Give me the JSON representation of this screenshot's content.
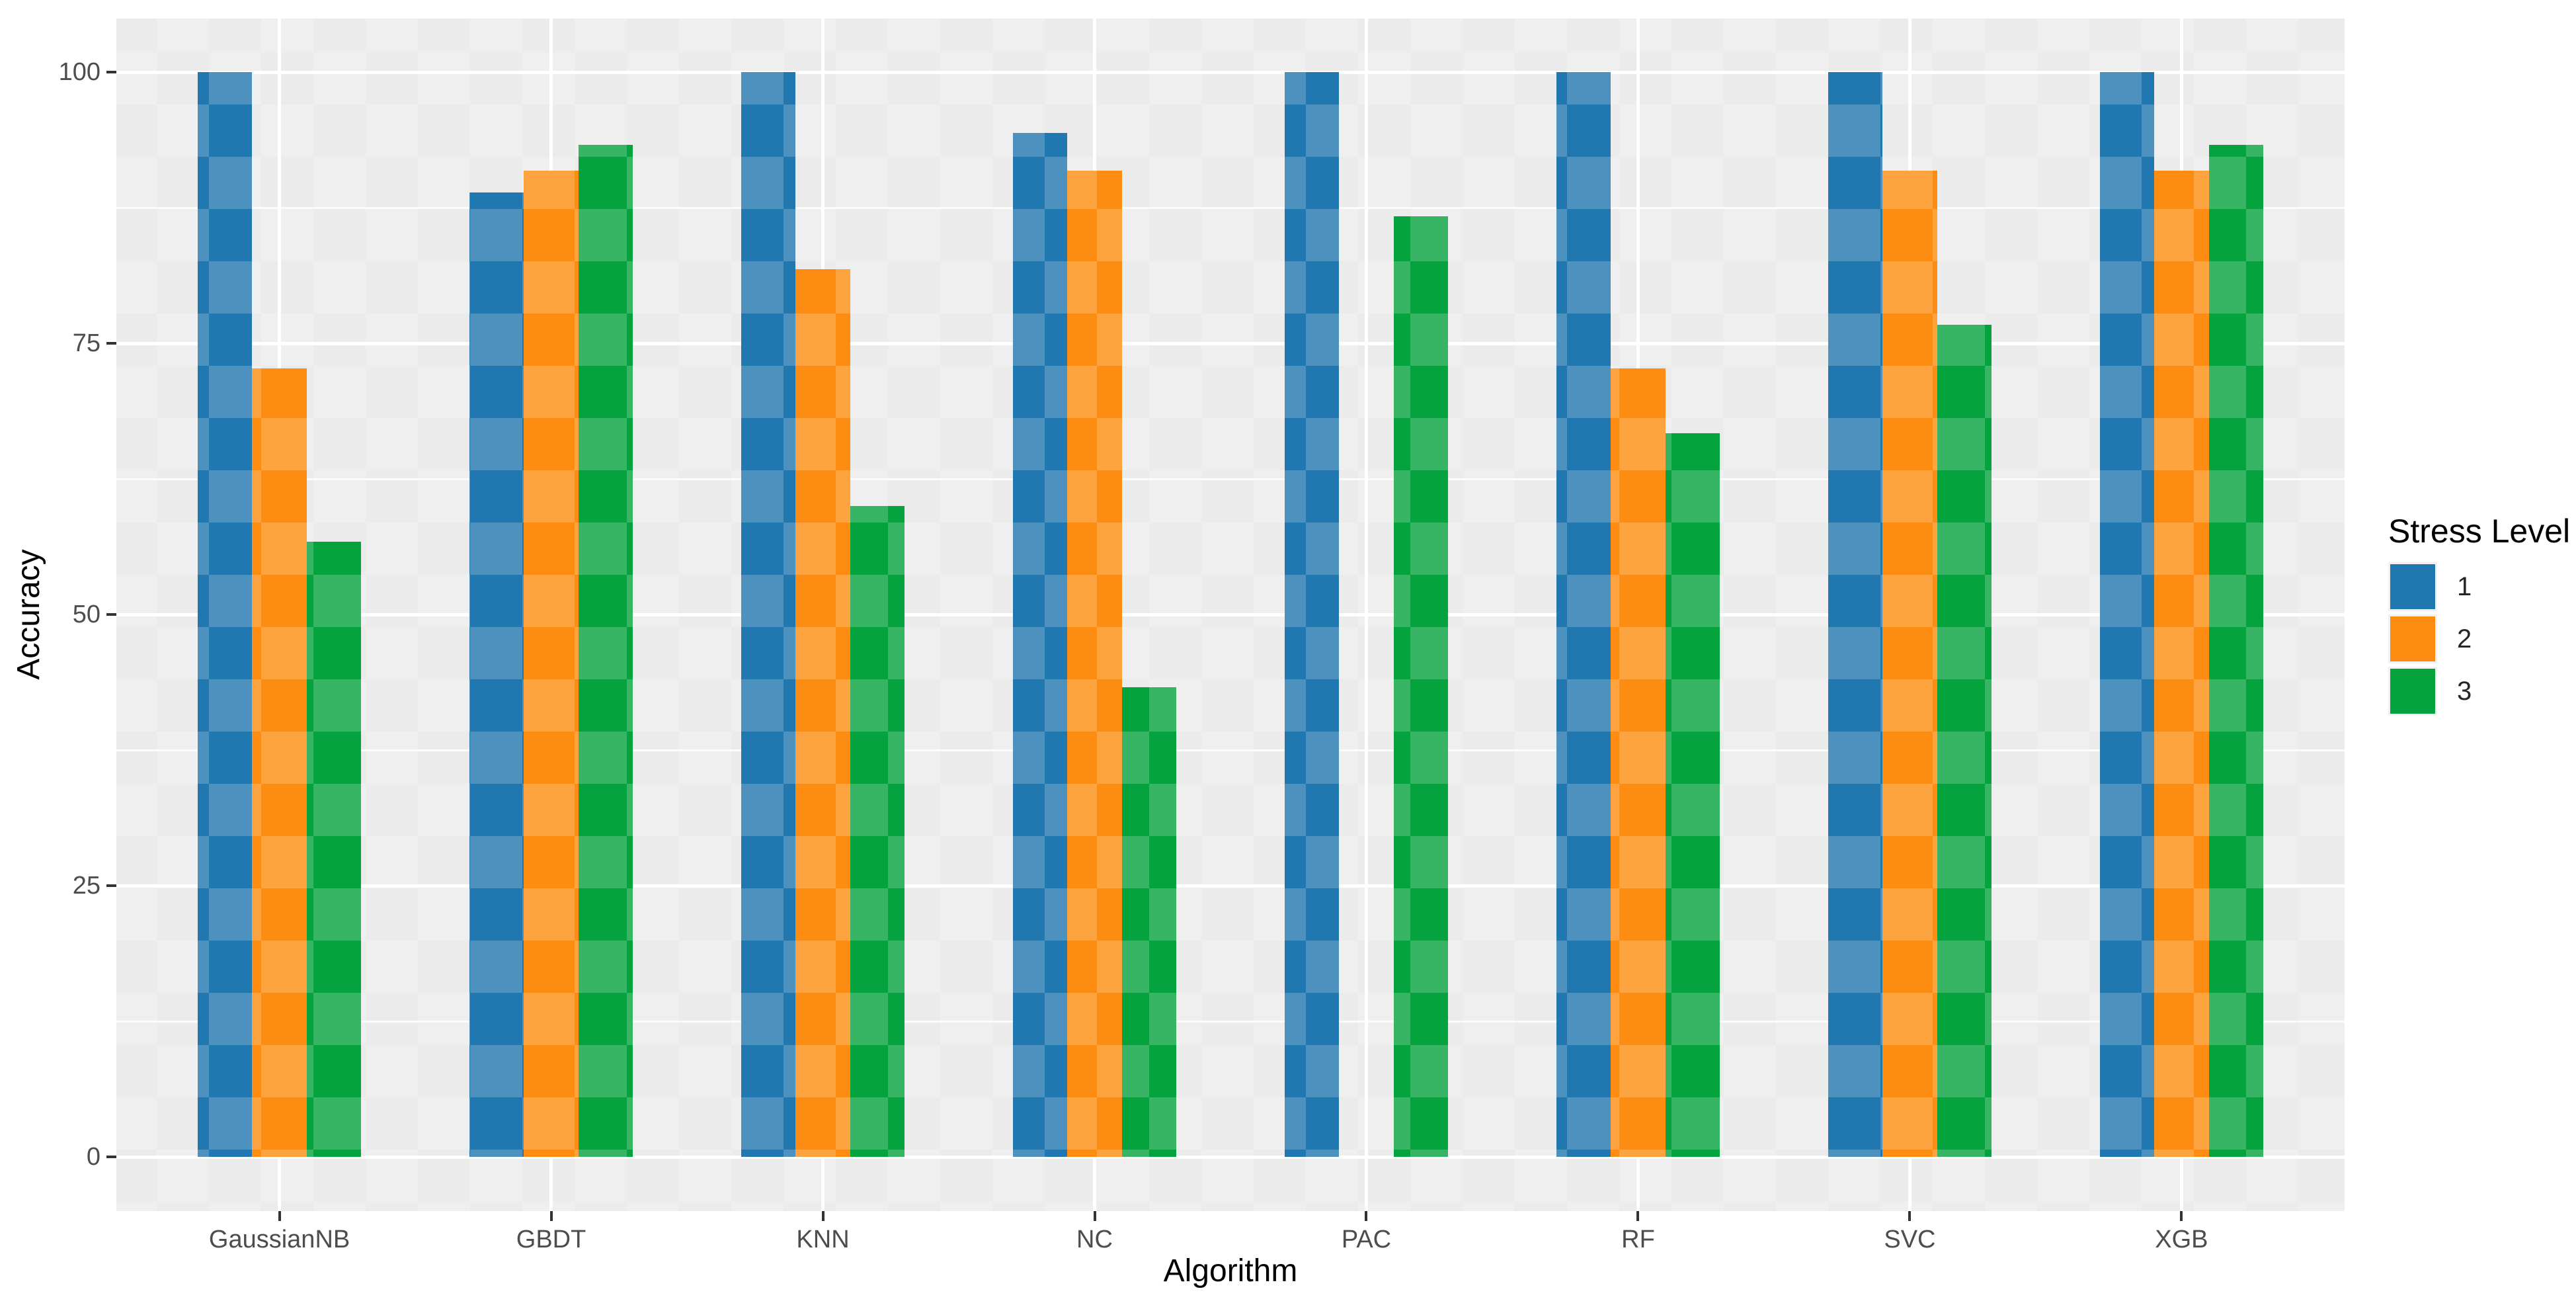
{
  "chart_data": {
    "type": "bar",
    "title": "",
    "xlabel": "Algorithm",
    "ylabel": "Accuracy",
    "categories": [
      "GaussianNB",
      "GBDT",
      "KNN",
      "NC",
      "PAC",
      "RF",
      "SVC",
      "XGB"
    ],
    "series": [
      {
        "name": "1",
        "color": "#2177AF",
        "values": [
          100,
          88.9,
          100,
          94.4,
          100,
          100,
          100,
          100
        ]
      },
      {
        "name": "2",
        "color": "#FC8D12",
        "values": [
          72.7,
          90.9,
          81.8,
          90.9,
          0,
          72.7,
          90.9,
          90.9
        ]
      },
      {
        "name": "3",
        "color": "#05A33E",
        "values": [
          56.7,
          93.3,
          60,
          43.3,
          86.7,
          66.7,
          76.7,
          93.3
        ]
      }
    ],
    "ylim": [
      0,
      100
    ],
    "y_ticks": [
      "0",
      "25",
      "50",
      "75",
      "100"
    ],
    "grid": true,
    "legend": {
      "title": "Stress Level",
      "position": "right",
      "entries": [
        "1",
        "2",
        "3"
      ]
    }
  },
  "theme": {
    "page_bg": "#FFFFFF",
    "panel_bg": "#EBEBEB",
    "grid_major": "#FFFFFF",
    "grid_minor": "#F5F5F5",
    "tick_label_color": "#4D4D4D",
    "tick_mark_color": "#333333",
    "axis_title_color": "#000000"
  }
}
